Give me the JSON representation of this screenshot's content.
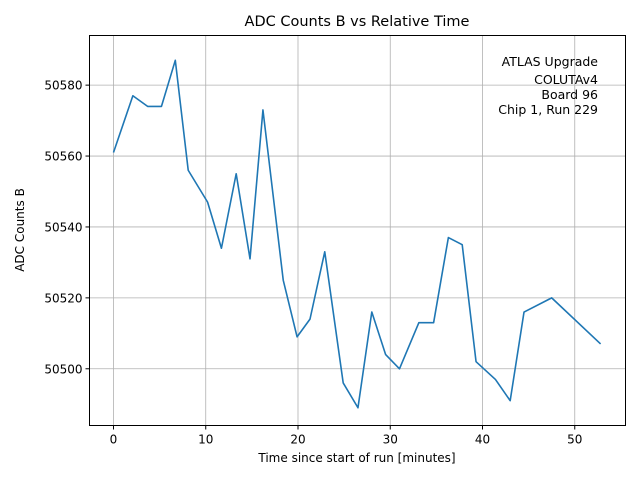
{
  "chart_data": {
    "type": "line",
    "title": "ADC Counts B vs Relative Time",
    "xlabel": "Time since start of run [minutes]",
    "ylabel": "ADC Counts B",
    "xlim": [
      -2.6,
      55.5
    ],
    "ylim": [
      50484,
      50594
    ],
    "xticks": [
      0,
      10,
      20,
      30,
      40,
      50
    ],
    "yticks": [
      50500,
      50520,
      50540,
      50560,
      50580
    ],
    "grid": true,
    "annotation": [
      "ATLAS Upgrade",
      "COLUTAv4",
      "Board 96",
      "Chip 1, Run 229"
    ],
    "annotation_placement": "top-right",
    "series": [
      {
        "color": "#1f77b4",
        "x": [
          0.0,
          2.1,
          3.7,
          5.2,
          6.7,
          8.1,
          10.2,
          11.7,
          13.3,
          14.8,
          16.2,
          18.4,
          19.9,
          21.3,
          22.9,
          24.9,
          26.5,
          28.0,
          29.5,
          31.0,
          33.1,
          34.7,
          36.3,
          37.8,
          39.3,
          41.4,
          43.0,
          44.5,
          47.5,
          52.8
        ],
        "y": [
          50561,
          50577,
          50574,
          50574,
          50587,
          50556,
          50547,
          50534,
          50555,
          50531,
          50573,
          50525,
          50509,
          50514,
          50533,
          50496,
          50489,
          50516,
          50504,
          50500,
          50513,
          50513,
          50537,
          50535,
          50502,
          50497,
          50491,
          50516,
          50520,
          50507
        ]
      }
    ]
  }
}
